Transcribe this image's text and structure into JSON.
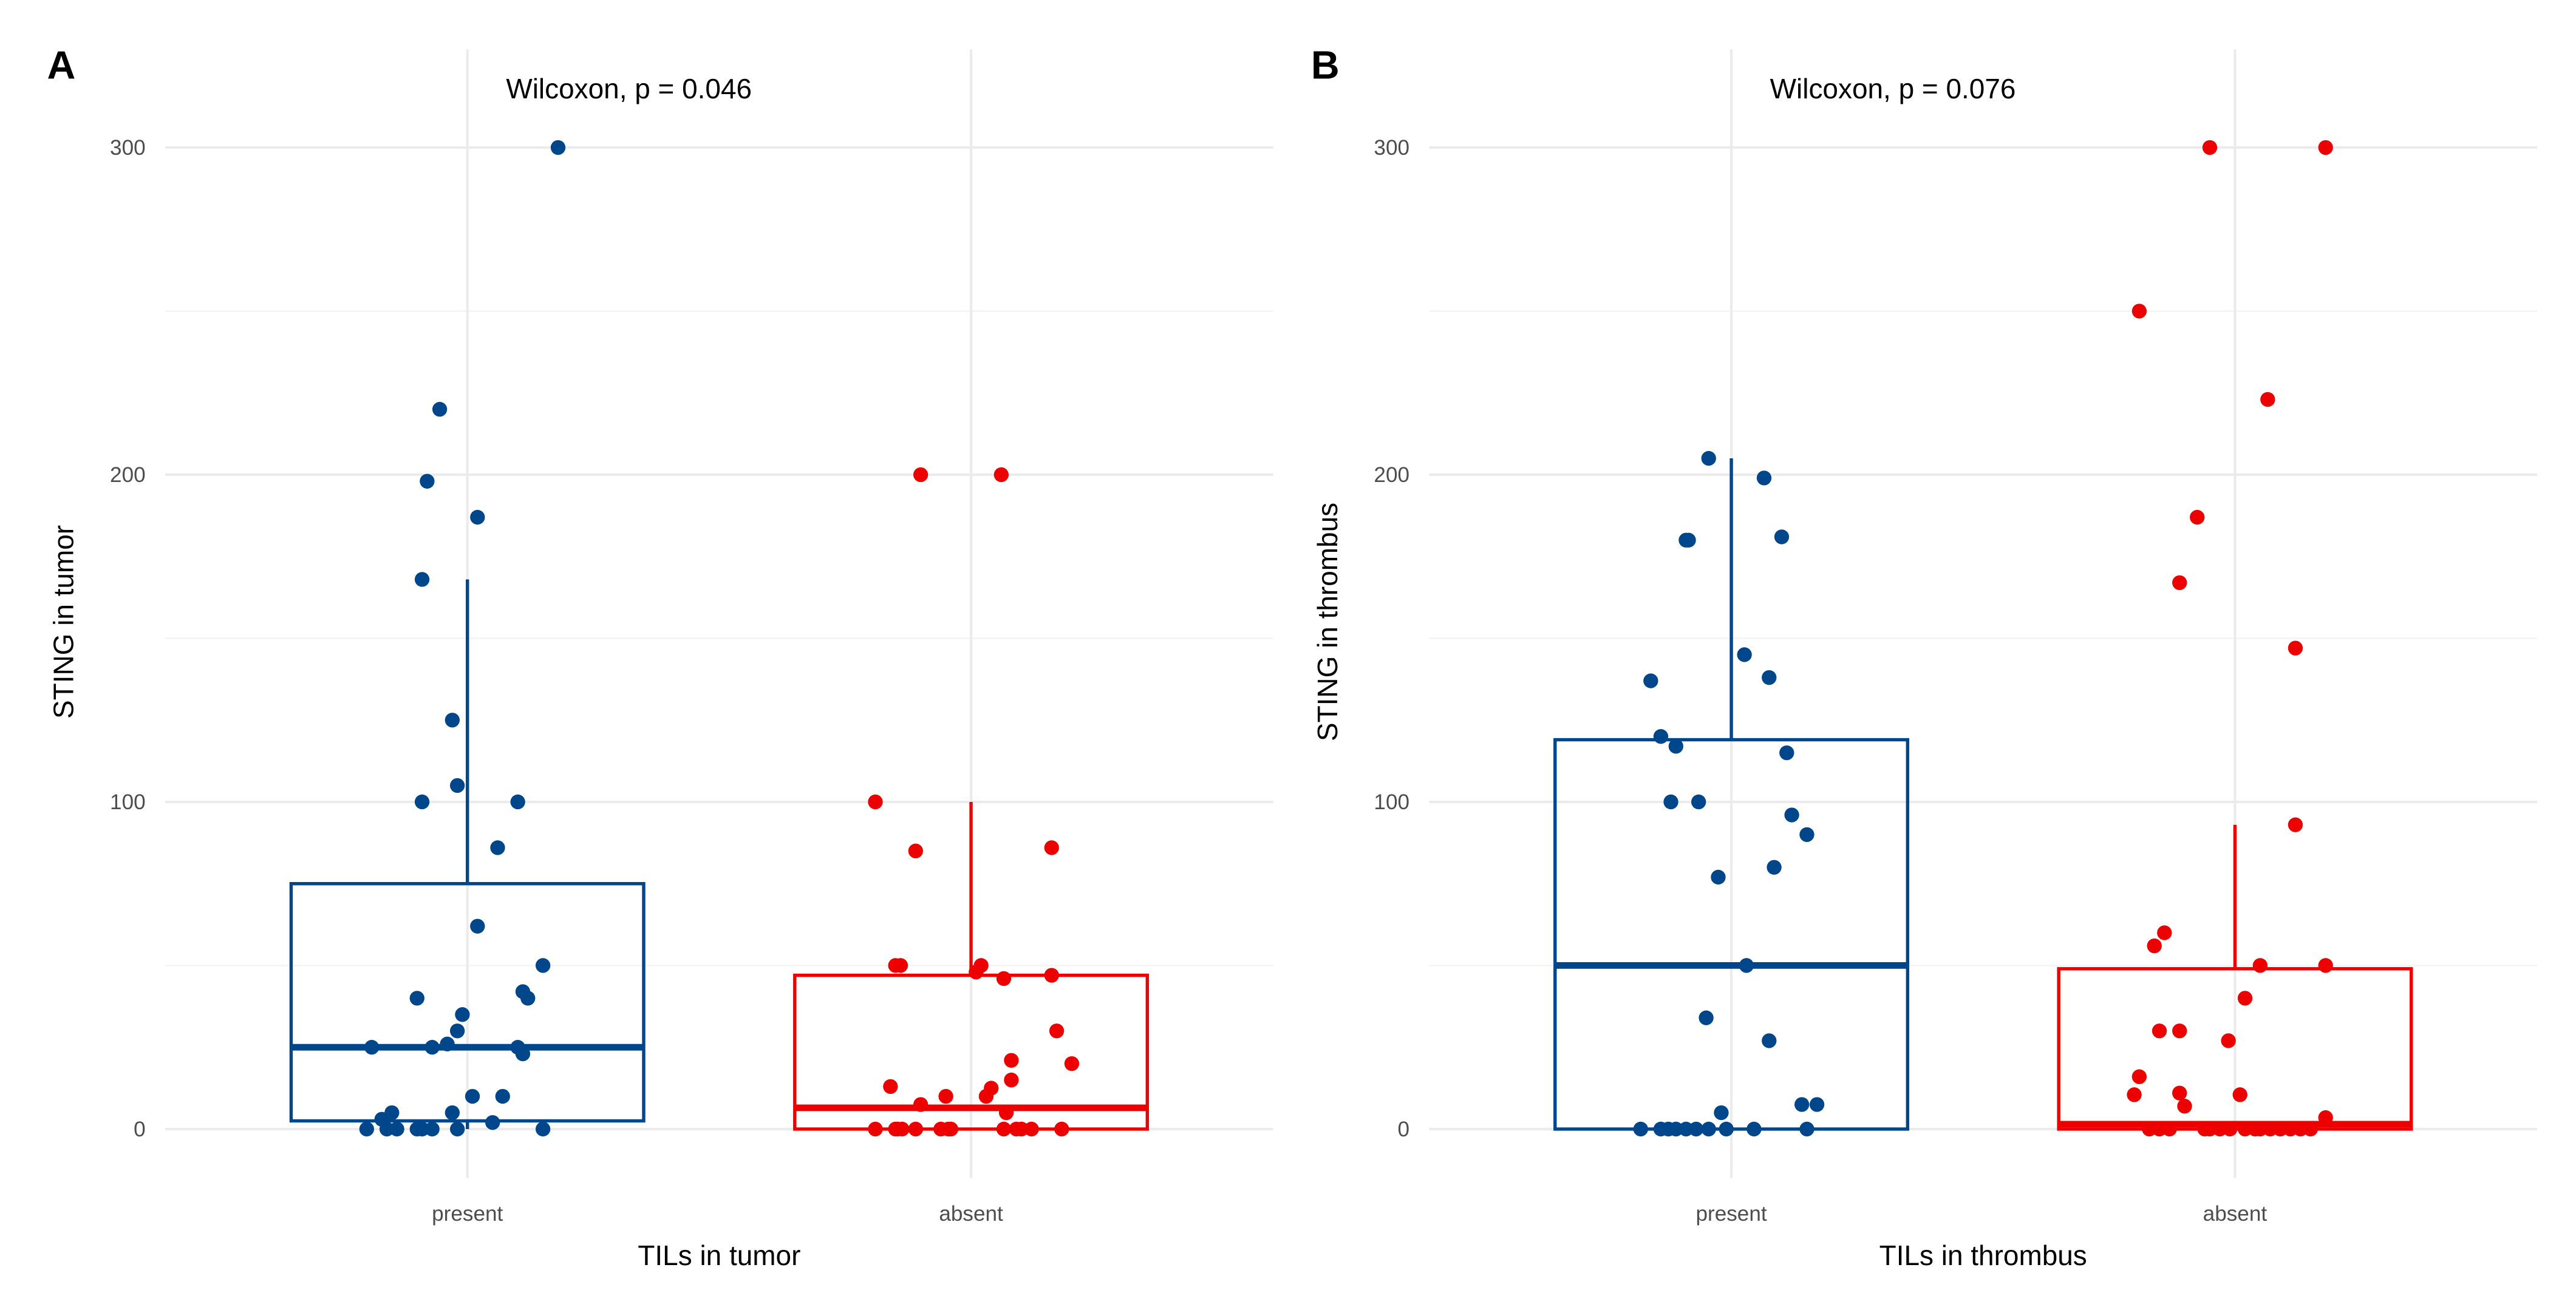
{
  "chart_data": [
    {
      "panel_label": "A",
      "type": "boxplot+jitter",
      "annotation": "Wilcoxon, p = 0.046",
      "xlabel": "TILs in tumor",
      "ylabel": "STING in tumor",
      "categories": [
        "present",
        "absent"
      ],
      "yticks": [
        0,
        100,
        200,
        300
      ],
      "ylim": [
        -15,
        315
      ],
      "xlim": [
        0.4,
        2.6
      ],
      "grid": true,
      "groups": [
        {
          "name": "present",
          "color": "#00468B",
          "box": {
            "lower_whisker": 0,
            "q1": 2.5,
            "median": 25,
            "q3": 75,
            "upper_whisker": 168
          },
          "points": [
            [
              1.18,
              300
            ],
            [
              0.945,
              220
            ],
            [
              0.92,
              198
            ],
            [
              1.02,
              187
            ],
            [
              0.91,
              168
            ],
            [
              0.97,
              125
            ],
            [
              0.98,
              105
            ],
            [
              0.91,
              100
            ],
            [
              1.1,
              100
            ],
            [
              1.06,
              86
            ],
            [
              1.02,
              62
            ],
            [
              1.15,
              50
            ],
            [
              1.11,
              42
            ],
            [
              1.12,
              40
            ],
            [
              0.9,
              40
            ],
            [
              0.99,
              35
            ],
            [
              0.98,
              30
            ],
            [
              0.81,
              25
            ],
            [
              0.93,
              25
            ],
            [
              0.96,
              26
            ],
            [
              1.1,
              25
            ],
            [
              1.11,
              23
            ],
            [
              1.01,
              10
            ],
            [
              1.07,
              10
            ],
            [
              0.85,
              5
            ],
            [
              0.97,
              5
            ],
            [
              0.83,
              3
            ],
            [
              1.05,
              2
            ],
            [
              0.8,
              0
            ],
            [
              0.84,
              0
            ],
            [
              0.86,
              0
            ],
            [
              0.9,
              0
            ],
            [
              0.91,
              0
            ],
            [
              0.93,
              0
            ],
            [
              0.98,
              0
            ],
            [
              1.15,
              0
            ]
          ]
        },
        {
          "name": "absent",
          "color": "#ED0000",
          "box": {
            "lower_whisker": 0,
            "q1": 0,
            "median": 6.5,
            "q3": 47,
            "upper_whisker": 100
          },
          "points": [
            [
              1.9,
              200
            ],
            [
              2.06,
              200
            ],
            [
              1.81,
              100
            ],
            [
              1.89,
              85
            ],
            [
              2.16,
              86
            ],
            [
              1.85,
              50
            ],
            [
              1.86,
              50
            ],
            [
              2.02,
              50
            ],
            [
              2.01,
              48
            ],
            [
              2.065,
              46
            ],
            [
              2.16,
              47
            ],
            [
              2.17,
              30
            ],
            [
              2.08,
              21
            ],
            [
              2.2,
              20
            ],
            [
              2.08,
              15
            ],
            [
              1.84,
              13
            ],
            [
              2.04,
              12.5
            ],
            [
              1.95,
              10
            ],
            [
              2.03,
              10
            ],
            [
              1.9,
              7.5
            ],
            [
              2.07,
              5
            ],
            [
              1.81,
              0
            ],
            [
              1.85,
              0
            ],
            [
              1.854,
              0
            ],
            [
              1.863,
              0
            ],
            [
              1.89,
              0
            ],
            [
              1.94,
              0
            ],
            [
              1.955,
              0
            ],
            [
              1.96,
              0
            ],
            [
              2.065,
              0
            ],
            [
              2.09,
              0
            ],
            [
              2.1,
              0
            ],
            [
              2.12,
              0
            ],
            [
              2.18,
              0
            ]
          ]
        }
      ]
    },
    {
      "panel_label": "B",
      "type": "boxplot+jitter",
      "annotation": "Wilcoxon, p = 0.076",
      "xlabel": "TILs in thrombus",
      "ylabel": "STING in thrombus",
      "categories": [
        "present",
        "absent"
      ],
      "yticks": [
        0,
        100,
        200,
        300
      ],
      "ylim": [
        -15,
        315
      ],
      "xlim": [
        0.4,
        2.6
      ],
      "grid": true,
      "groups": [
        {
          "name": "present",
          "color": "#00468B",
          "box": {
            "lower_whisker": 0,
            "q1": 0,
            "median": 50,
            "q3": 119,
            "upper_whisker": 205
          },
          "points": [
            [
              0.955,
              205
            ],
            [
              1.065,
              199
            ],
            [
              0.91,
              180
            ],
            [
              0.915,
              180
            ],
            [
              1.1,
              181
            ],
            [
              1.026,
              145
            ],
            [
              0.84,
              137
            ],
            [
              1.075,
              138
            ],
            [
              0.86,
              120
            ],
            [
              0.89,
              117
            ],
            [
              1.11,
              115
            ],
            [
              0.88,
              100
            ],
            [
              0.935,
              100
            ],
            [
              1.12,
              96
            ],
            [
              1.15,
              90
            ],
            [
              1.085,
              80
            ],
            [
              0.974,
              77
            ],
            [
              1.03,
              50
            ],
            [
              0.95,
              34
            ],
            [
              1.075,
              27
            ],
            [
              0.98,
              5
            ],
            [
              1.14,
              7.5
            ],
            [
              1.17,
              7.5
            ],
            [
              0.82,
              0
            ],
            [
              0.86,
              0
            ],
            [
              0.875,
              0
            ],
            [
              0.89,
              0
            ],
            [
              0.91,
              0
            ],
            [
              0.93,
              0
            ],
            [
              0.955,
              0
            ],
            [
              0.99,
              0
            ],
            [
              1.045,
              0
            ],
            [
              1.15,
              0
            ]
          ]
        },
        {
          "name": "absent",
          "color": "#ED0000",
          "box": {
            "lower_whisker": 0,
            "q1": 0,
            "median": 1.5,
            "q3": 49,
            "upper_whisker": 93
          },
          "points": [
            [
              1.95,
              300
            ],
            [
              2.18,
              300
            ],
            [
              1.81,
              250
            ],
            [
              2.065,
              223
            ],
            [
              1.925,
              187
            ],
            [
              1.89,
              167
            ],
            [
              2.12,
              147
            ],
            [
              2.12,
              93
            ],
            [
              1.86,
              60
            ],
            [
              1.84,
              56
            ],
            [
              2.05,
              50
            ],
            [
              2.18,
              50
            ],
            [
              2.02,
              40
            ],
            [
              1.85,
              30
            ],
            [
              1.89,
              30
            ],
            [
              1.987,
              27
            ],
            [
              1.81,
              16
            ],
            [
              1.8,
              10.5
            ],
            [
              1.89,
              11
            ],
            [
              2.01,
              10.5
            ],
            [
              1.9,
              7
            ],
            [
              2.18,
              3.5
            ],
            [
              1.83,
              0
            ],
            [
              1.85,
              0
            ],
            [
              1.87,
              0
            ],
            [
              1.94,
              0
            ],
            [
              1.95,
              0
            ],
            [
              1.97,
              0
            ],
            [
              1.99,
              0
            ],
            [
              2.02,
              0
            ],
            [
              2.04,
              0
            ],
            [
              2.05,
              0
            ],
            [
              2.07,
              0
            ],
            [
              2.09,
              0
            ],
            [
              2.11,
              0
            ],
            [
              2.13,
              0
            ],
            [
              2.15,
              0
            ]
          ]
        }
      ]
    }
  ]
}
